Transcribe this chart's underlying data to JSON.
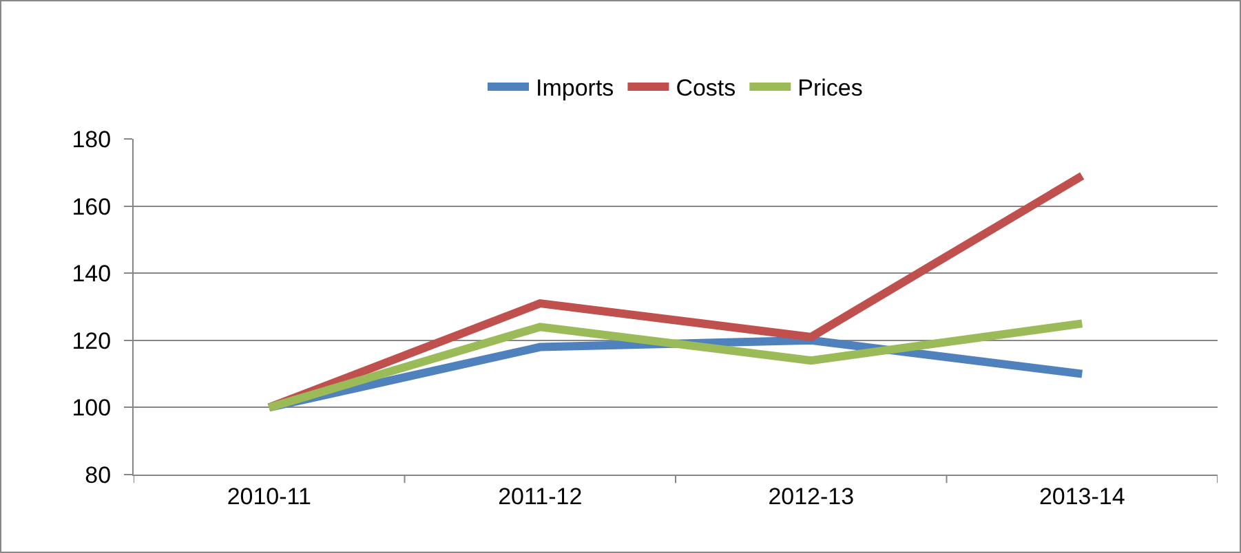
{
  "chart_data": {
    "type": "line",
    "categories": [
      "2010-11",
      "2011-12",
      "2012-13",
      "2013-14"
    ],
    "series": [
      {
        "name": "Imports",
        "color": "#4f81bd",
        "values": [
          100,
          118,
          120,
          110
        ]
      },
      {
        "name": "Costs",
        "color": "#c0504d",
        "values": [
          100,
          131,
          121,
          169
        ]
      },
      {
        "name": "Prices",
        "color": "#9bbb59",
        "values": [
          100,
          124,
          114,
          125
        ]
      }
    ],
    "ylim": [
      80,
      180
    ],
    "yticks": [
      80,
      100,
      120,
      140,
      160,
      180
    ],
    "grid": "y",
    "legend": "top",
    "marker": "none",
    "line_style": "solid"
  }
}
